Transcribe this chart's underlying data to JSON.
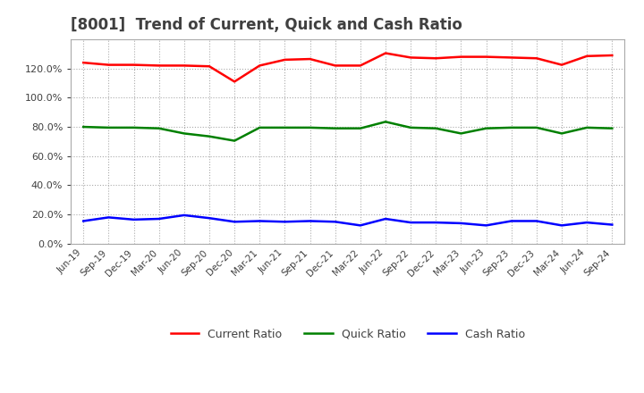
{
  "title": "[8001]  Trend of Current, Quick and Cash Ratio",
  "title_fontsize": 12,
  "title_color": "#404040",
  "background_color": "#ffffff",
  "grid_color": "#aaaaaa",
  "x_labels": [
    "Jun-19",
    "Sep-19",
    "Dec-19",
    "Mar-20",
    "Jun-20",
    "Sep-20",
    "Dec-20",
    "Mar-21",
    "Jun-21",
    "Sep-21",
    "Dec-21",
    "Mar-22",
    "Jun-22",
    "Sep-22",
    "Dec-22",
    "Mar-23",
    "Jun-23",
    "Sep-23",
    "Dec-23",
    "Mar-24",
    "Jun-24",
    "Sep-24"
  ],
  "current_ratio": [
    124.0,
    122.5,
    122.5,
    122.0,
    122.0,
    121.5,
    111.0,
    122.0,
    126.0,
    126.5,
    122.0,
    122.0,
    130.5,
    127.5,
    127.0,
    128.0,
    128.0,
    127.5,
    127.0,
    122.5,
    128.5,
    129.0
  ],
  "quick_ratio": [
    80.0,
    79.5,
    79.5,
    79.0,
    75.5,
    73.5,
    70.5,
    79.5,
    79.5,
    79.5,
    79.0,
    79.0,
    83.5,
    79.5,
    79.0,
    75.5,
    79.0,
    79.5,
    79.5,
    75.5,
    79.5,
    79.0
  ],
  "cash_ratio": [
    15.5,
    18.0,
    16.5,
    17.0,
    19.5,
    17.5,
    15.0,
    15.5,
    15.0,
    15.5,
    15.0,
    12.5,
    17.0,
    14.5,
    14.5,
    14.0,
    12.5,
    15.5,
    15.5,
    12.5,
    14.5,
    13.0
  ],
  "current_color": "#ff0000",
  "quick_color": "#008000",
  "cash_color": "#0000ff",
  "line_width": 1.8,
  "ylim": [
    0,
    140
  ],
  "yticks": [
    0,
    20,
    40,
    60,
    80,
    100,
    120
  ],
  "legend_labels": [
    "Current Ratio",
    "Quick Ratio",
    "Cash Ratio"
  ]
}
